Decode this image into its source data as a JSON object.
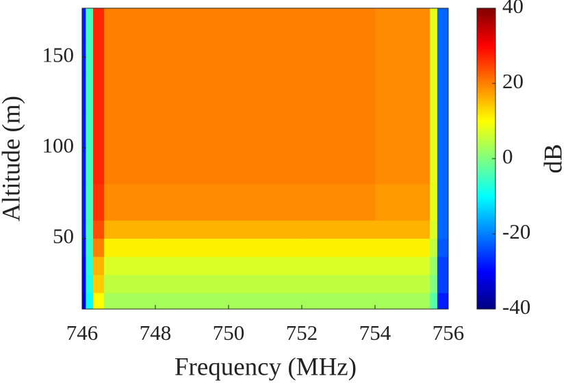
{
  "chart_data": {
    "type": "heatmap",
    "xlabel": "Frequency (MHz)",
    "ylabel": "Altitude (m)",
    "colorbar_label": "dB",
    "colormap": "jet",
    "xbins": [
      746,
      746.1,
      746.3,
      746.6,
      748,
      750,
      752,
      754,
      755.5,
      755.7,
      756
    ],
    "ybins": [
      11,
      20,
      30,
      40,
      50,
      60,
      80,
      100,
      120,
      140,
      160,
      177
    ],
    "z": [
      [
        -32,
        -10,
        10,
        3,
        3,
        3,
        3,
        3,
        -3,
        -28
      ],
      [
        -30,
        -8,
        14,
        5,
        5,
        5,
        5,
        5,
        0,
        -25
      ],
      [
        -30,
        -7,
        16,
        7,
        7,
        7,
        7,
        7,
        2,
        -25
      ],
      [
        -29,
        -6,
        20,
        11,
        11,
        11,
        11,
        11,
        5,
        -23
      ],
      [
        -28,
        -5,
        24,
        16,
        16,
        16,
        16,
        16,
        7,
        -22
      ],
      [
        -28,
        -5,
        26,
        19,
        19,
        19,
        19,
        18,
        8,
        -22
      ],
      [
        -28,
        -5,
        27,
        20,
        20,
        20,
        20,
        19,
        8,
        -22
      ],
      [
        -28,
        -5,
        27,
        20,
        20,
        20,
        20,
        19,
        8,
        -22
      ],
      [
        -28,
        -5,
        27,
        20,
        20,
        20,
        20,
        19,
        8,
        -22
      ],
      [
        -28,
        -5,
        27,
        20,
        20,
        20,
        20,
        19,
        8,
        -22
      ],
      [
        -28,
        -5,
        27,
        20,
        20,
        20,
        20,
        19,
        8,
        -22
      ]
    ],
    "xlim": [
      746,
      756
    ],
    "xticks": [
      746,
      748,
      750,
      752,
      754,
      756
    ],
    "ylim": [
      11,
      177
    ],
    "yticks": [
      50,
      100,
      150
    ],
    "clim": [
      -40,
      40
    ],
    "cticks": [
      -40,
      -20,
      0,
      20,
      40
    ]
  }
}
